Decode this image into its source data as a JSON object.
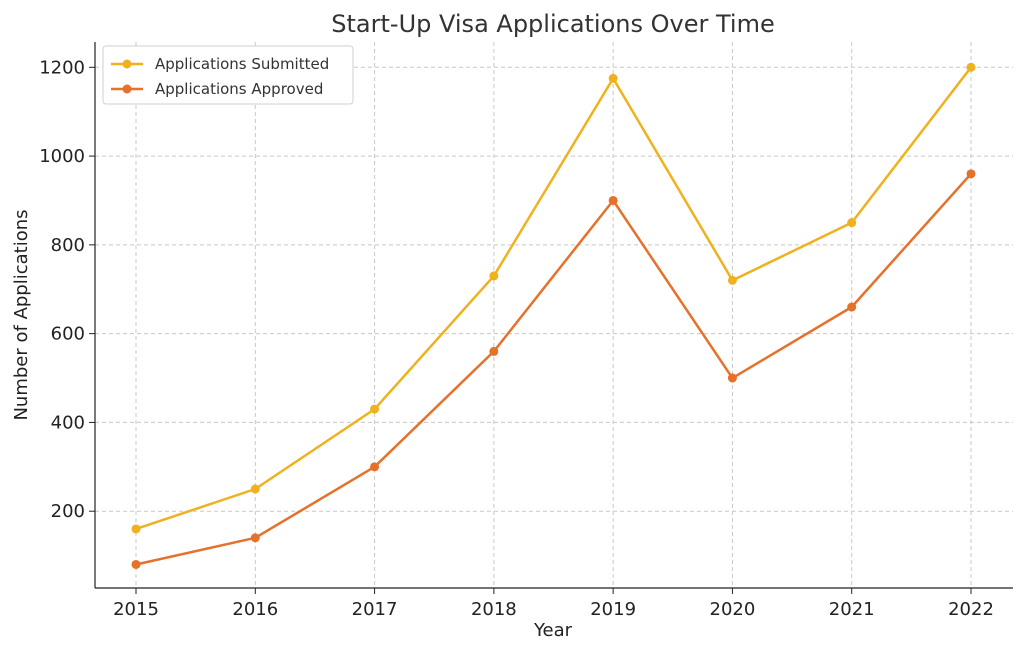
{
  "chart_data": {
    "type": "line",
    "title": "Start-Up Visa Applications Over Time",
    "xlabel": "Year",
    "ylabel": "Number of Applications",
    "categories": [
      "2015",
      "2016",
      "2017",
      "2018",
      "2019",
      "2020",
      "2021",
      "2022"
    ],
    "series": [
      {
        "name": "Applications Submitted",
        "color": "#f0b11e",
        "values": [
          160,
          250,
          430,
          730,
          1175,
          720,
          850,
          1200
        ]
      },
      {
        "name": "Applications Approved",
        "color": "#e5712b",
        "values": [
          80,
          140,
          300,
          560,
          900,
          500,
          660,
          960
        ]
      }
    ],
    "ylim": [
      27,
      1257
    ],
    "yticks": [
      200,
      400,
      600,
      800,
      1000,
      1200
    ],
    "grid": true,
    "legend_position": "top-left"
  }
}
